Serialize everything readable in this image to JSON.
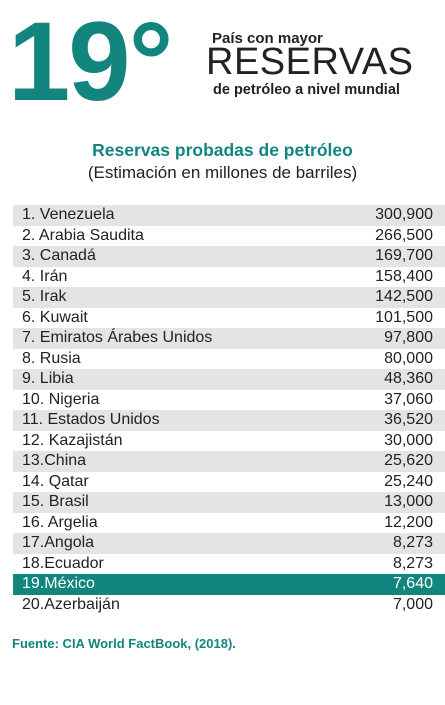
{
  "header": {
    "rank": "19°",
    "line1": "País con mayor",
    "line2": "RESERVAS",
    "line3": "de petróleo a nivel mundial"
  },
  "chart_data": {
    "type": "table",
    "title": "Reservas probadas de petróleo",
    "subtitle": "(Estimación en millones de barriles)",
    "highlight_color": "#12857f",
    "highlighted_row": 18,
    "rows": [
      {
        "label": "1.  Venezuela",
        "value": "300,900"
      },
      {
        "label": "2.  Arabia Saudita",
        "value": "266,500"
      },
      {
        "label": "3.  Canadá",
        "value": "169,700"
      },
      {
        "label": "4.  Irán",
        "value": "158,400"
      },
      {
        "label": "5.  Irak",
        "value": "142,500"
      },
      {
        "label": "6.  Kuwait",
        "value": "101,500"
      },
      {
        "label": "7.  Emiratos Árabes Unidos",
        "value": "97,800"
      },
      {
        "label": "8.  Rusia",
        "value": "80,000"
      },
      {
        "label": "9.  Libia",
        "value": "48,360"
      },
      {
        "label": "10. Nigeria",
        "value": "37,060"
      },
      {
        "label": "11. Estados Unidos",
        "value": "36,520"
      },
      {
        "label": "12. Kazajistán",
        "value": "30,000"
      },
      {
        "label": "13.China",
        "value": "25,620"
      },
      {
        "label": "14. Qatar",
        "value": "25,240"
      },
      {
        "label": "15. Brasil",
        "value": "13,000"
      },
      {
        "label": "16. Argelia",
        "value": "12,200"
      },
      {
        "label": "17.Angola",
        "value": "8,273"
      },
      {
        "label": "18.Ecuador",
        "value": "8,273"
      },
      {
        "label": "19.México",
        "value": "7,640"
      },
      {
        "label": "20.Azerbaiján",
        "value": "7,000"
      }
    ]
  },
  "source": "Fuente: CIA World FactBook, (2018)."
}
